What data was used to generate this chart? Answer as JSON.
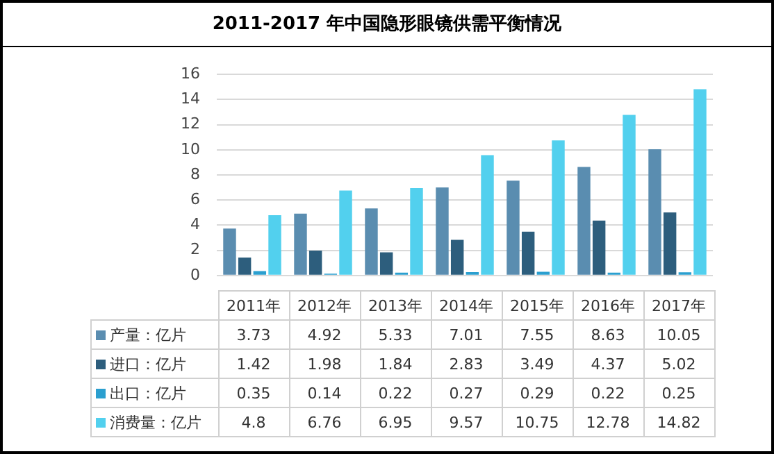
{
  "chart_data": {
    "type": "bar",
    "title": "2011-2017 年中国隐形眼镜供需平衡情况",
    "categories": [
      "2011年",
      "2012年",
      "2013年",
      "2014年",
      "2015年",
      "2016年",
      "2017年"
    ],
    "series": [
      {
        "name": "产量：亿片",
        "color": "#5a8db0",
        "values": [
          3.73,
          4.92,
          5.33,
          7.01,
          7.55,
          8.63,
          10.05
        ]
      },
      {
        "name": "进口：亿片",
        "color": "#2d5e7d",
        "values": [
          1.42,
          1.98,
          1.84,
          2.83,
          3.49,
          4.37,
          5.02
        ]
      },
      {
        "name": "出口：亿片",
        "color": "#2b9fcf",
        "values": [
          0.35,
          0.14,
          0.22,
          0.27,
          0.29,
          0.22,
          0.25
        ]
      },
      {
        "name": "消费量：亿片",
        "color": "#52d0ee",
        "values": [
          4.8,
          6.76,
          6.95,
          9.57,
          10.75,
          12.78,
          14.82
        ]
      }
    ],
    "ylim": [
      0,
      16
    ],
    "yticks": [
      0,
      2,
      4,
      6,
      8,
      10,
      12,
      14,
      16
    ],
    "grid": "y",
    "legend": "bottom",
    "data_labels": true
  }
}
